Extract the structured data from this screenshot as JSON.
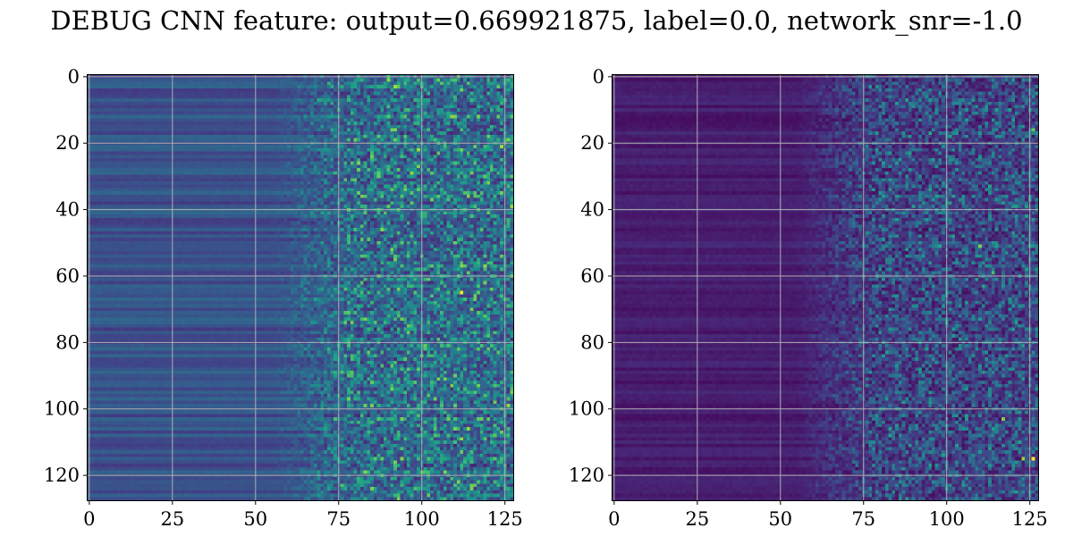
{
  "title": "DEBUG CNN feature: output=0.669921875, label=0.0, network_snr=-1.0",
  "chart_data": [
    {
      "type": "heatmap",
      "colormap": "viridis",
      "rows": 128,
      "cols": 128,
      "xlim": [
        -0.5,
        127.5
      ],
      "ylim": [
        127.5,
        -0.5
      ],
      "x_ticks": [
        0,
        25,
        50,
        75,
        100,
        125
      ],
      "x_tick_labels": [
        "0",
        "25",
        "50",
        "75",
        "100",
        "125"
      ],
      "y_ticks": [
        0,
        20,
        40,
        60,
        80,
        100,
        120
      ],
      "y_tick_labels": [
        "0",
        "20",
        "40",
        "60",
        "80",
        "100",
        "120"
      ],
      "grid": true,
      "grid_color": "#b0b0b0",
      "value_range": [
        0,
        1
      ],
      "description_profile": {
        "base_level_cols_0_70": 0.25,
        "noise_level_cols_75_127": 0.35,
        "bright_spots": [
          {
            "row": 65,
            "col": 112,
            "value": 1.0
          },
          {
            "row": 109,
            "col": 112,
            "value": 0.85
          },
          {
            "row": 103,
            "col": 94,
            "value": 0.8
          },
          {
            "row": 64,
            "col": 93,
            "value": 0.8
          },
          {
            "row": 31,
            "col": 80,
            "value": 0.75
          },
          {
            "row": 4,
            "col": 112,
            "value": 0.8
          }
        ]
      }
    },
    {
      "type": "heatmap",
      "colormap": "viridis",
      "rows": 128,
      "cols": 128,
      "xlim": [
        -0.5,
        127.5
      ],
      "ylim": [
        127.5,
        -0.5
      ],
      "x_ticks": [
        0,
        25,
        50,
        75,
        100,
        125
      ],
      "x_tick_labels": [
        "0",
        "25",
        "50",
        "75",
        "100",
        "125"
      ],
      "y_ticks": [
        0,
        20,
        40,
        60,
        80,
        100,
        120
      ],
      "y_tick_labels": [
        "0",
        "20",
        "40",
        "60",
        "80",
        "100",
        "120"
      ],
      "grid": true,
      "grid_color": "#b0b0b0",
      "value_range": [
        0,
        1
      ],
      "description_profile": {
        "base_level_cols_0_70": 0.08,
        "noise_level_cols_75_127": 0.28,
        "bright_spots": [
          {
            "row": 115,
            "col": 126,
            "value": 1.0
          },
          {
            "row": 115,
            "col": 123,
            "value": 0.85
          },
          {
            "row": 103,
            "col": 117,
            "value": 0.8
          },
          {
            "row": 51,
            "col": 110,
            "value": 0.8
          },
          {
            "row": 59,
            "col": 114,
            "value": 0.7
          },
          {
            "row": 16,
            "col": 126,
            "value": 0.75
          }
        ]
      }
    }
  ]
}
